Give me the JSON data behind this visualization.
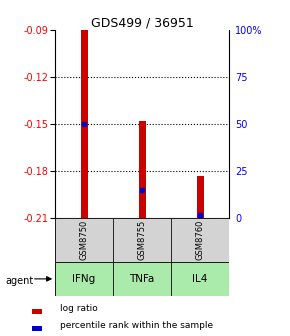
{
  "title": "GDS499 / 36951",
  "samples": [
    "GSM8750",
    "GSM8755",
    "GSM8760"
  ],
  "agents": [
    "IFNg",
    "TNFa",
    "IL4"
  ],
  "agent_colors": [
    "#aaeaaa",
    "#aaeaaa",
    "#aaeaaa"
  ],
  "bar_bottom": -0.21,
  "log_ratios": [
    -0.09,
    -0.148,
    -0.183
  ],
  "percentile_ranks": [
    0.5,
    0.15,
    0.02
  ],
  "ylim_left": [
    -0.21,
    -0.09
  ],
  "ylim_right": [
    0,
    100
  ],
  "yticks_left": [
    -0.21,
    -0.18,
    -0.15,
    -0.12,
    -0.09
  ],
  "yticks_right": [
    0,
    25,
    50,
    75,
    100
  ],
  "ytick_labels_left": [
    "-0.21",
    "-0.18",
    "-0.15",
    "-0.12",
    "-0.09"
  ],
  "ytick_labels_right": [
    "0",
    "25",
    "50",
    "75",
    "100%"
  ],
  "bar_color": "#cc0000",
  "percentile_color": "#0000cc",
  "bar_width": 0.12,
  "sample_box_color": "#d3d3d3",
  "agent_label": "agent",
  "legend_log_ratio": "log ratio",
  "legend_percentile": "percentile rank within the sample"
}
